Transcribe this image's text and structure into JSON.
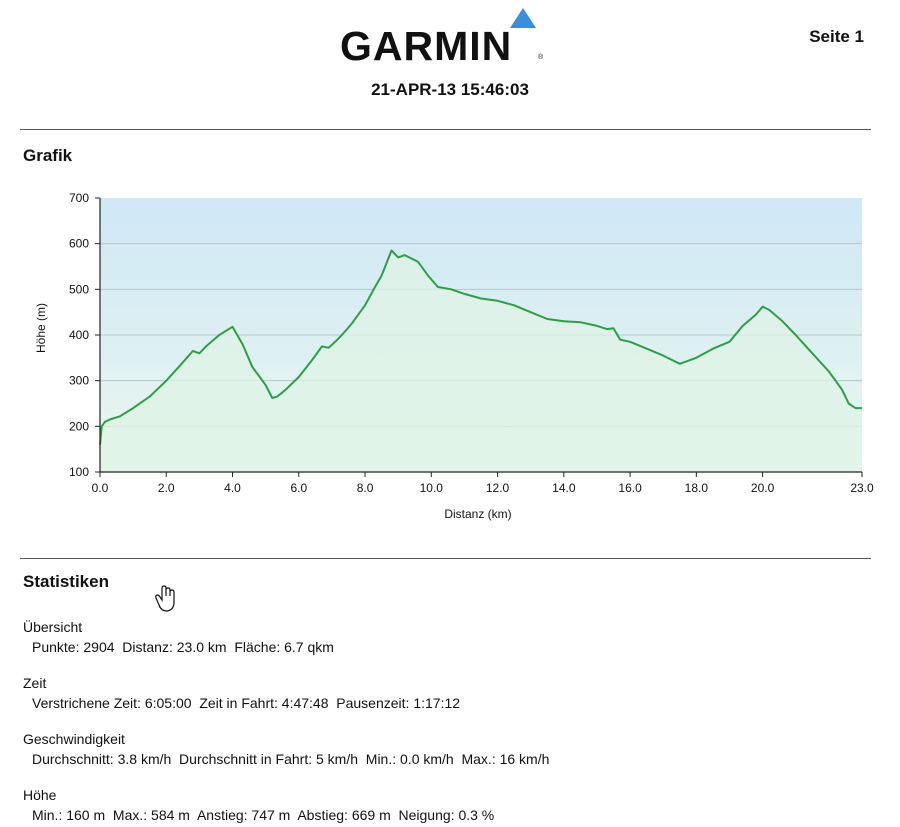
{
  "header": {
    "brand": "GARMIN",
    "date": "21-APR-13 15:46:03",
    "page_label": "Seite 1"
  },
  "graph_section": {
    "title": "Grafik"
  },
  "chart_data": {
    "type": "area",
    "xlabel": "Distanz  (km)",
    "ylabel": "Höhe (m)",
    "xlim": [
      0,
      23
    ],
    "ylim": [
      100,
      700
    ],
    "xticks": [
      "0.0",
      "2.0",
      "4.0",
      "6.0",
      "8.0",
      "10.0",
      "12.0",
      "14.0",
      "16.0",
      "18.0",
      "20.0",
      "23.0"
    ],
    "yticks": [
      "100",
      "200",
      "300",
      "400",
      "500",
      "600",
      "700"
    ],
    "grid": true,
    "line_color": "#2e9e46",
    "x": [
      0,
      0.05,
      0.15,
      0.3,
      0.6,
      1.0,
      1.5,
      2.0,
      2.5,
      2.8,
      3.0,
      3.2,
      3.6,
      4.0,
      4.3,
      4.6,
      5.0,
      5.2,
      5.35,
      5.6,
      6.0,
      6.4,
      6.7,
      6.9,
      7.1,
      7.3,
      7.6,
      8.0,
      8.3,
      8.5,
      8.8,
      9.0,
      9.2,
      9.6,
      9.9,
      10.2,
      10.6,
      11.0,
      11.5,
      12.0,
      12.5,
      13.0,
      13.5,
      14.0,
      14.5,
      15.0,
      15.3,
      15.5,
      15.7,
      16.0,
      16.5,
      17.0,
      17.5,
      18.0,
      18.5,
      19.0,
      19.4,
      19.8,
      20.0,
      20.2,
      20.6,
      21.0,
      21.5,
      22.0,
      22.4,
      22.6,
      22.8,
      23.0
    ],
    "y": [
      160,
      200,
      210,
      215,
      222,
      240,
      265,
      300,
      340,
      365,
      360,
      375,
      400,
      418,
      380,
      330,
      290,
      262,
      265,
      280,
      308,
      345,
      375,
      372,
      385,
      400,
      425,
      465,
      505,
      530,
      585,
      570,
      575,
      560,
      530,
      505,
      500,
      490,
      480,
      475,
      465,
      450,
      435,
      430,
      428,
      420,
      413,
      415,
      390,
      385,
      370,
      355,
      337,
      350,
      370,
      385,
      420,
      445,
      462,
      455,
      430,
      400,
      360,
      320,
      280,
      250,
      240,
      240
    ]
  },
  "stats_section": {
    "title": "Statistiken",
    "overview": {
      "heading": "Übersicht",
      "line": "Punkte: 2904  Distanz: 23.0 km  Fläche: 6.7 qkm"
    },
    "time": {
      "heading": "Zeit",
      "line": "Verstrichene Zeit: 6:05:00  Zeit in Fahrt: 4:47:48  Pausenzeit: 1:17:12"
    },
    "speed": {
      "heading": "Geschwindigkeit",
      "line": "Durchschnitt: 3.8 km/h  Durchschnitt in Fahrt: 5 km/h  Min.: 0.0 km/h  Max.: 16 km/h"
    },
    "elevation": {
      "heading": "Höhe",
      "line": "Min.: 160 m  Max.: 584 m  Anstieg: 747 m  Abstieg: 669 m  Neigung: 0.3 %"
    }
  },
  "icons": {
    "cursor": "hand-cursor-icon",
    "logo_mark": "triangle-logo-icon"
  },
  "colors": {
    "plot_top": "#cfe8f7",
    "plot_bottom": "#e9f7ee",
    "line": "#2e9e46",
    "logo_triangle": "#3a8fdc"
  }
}
